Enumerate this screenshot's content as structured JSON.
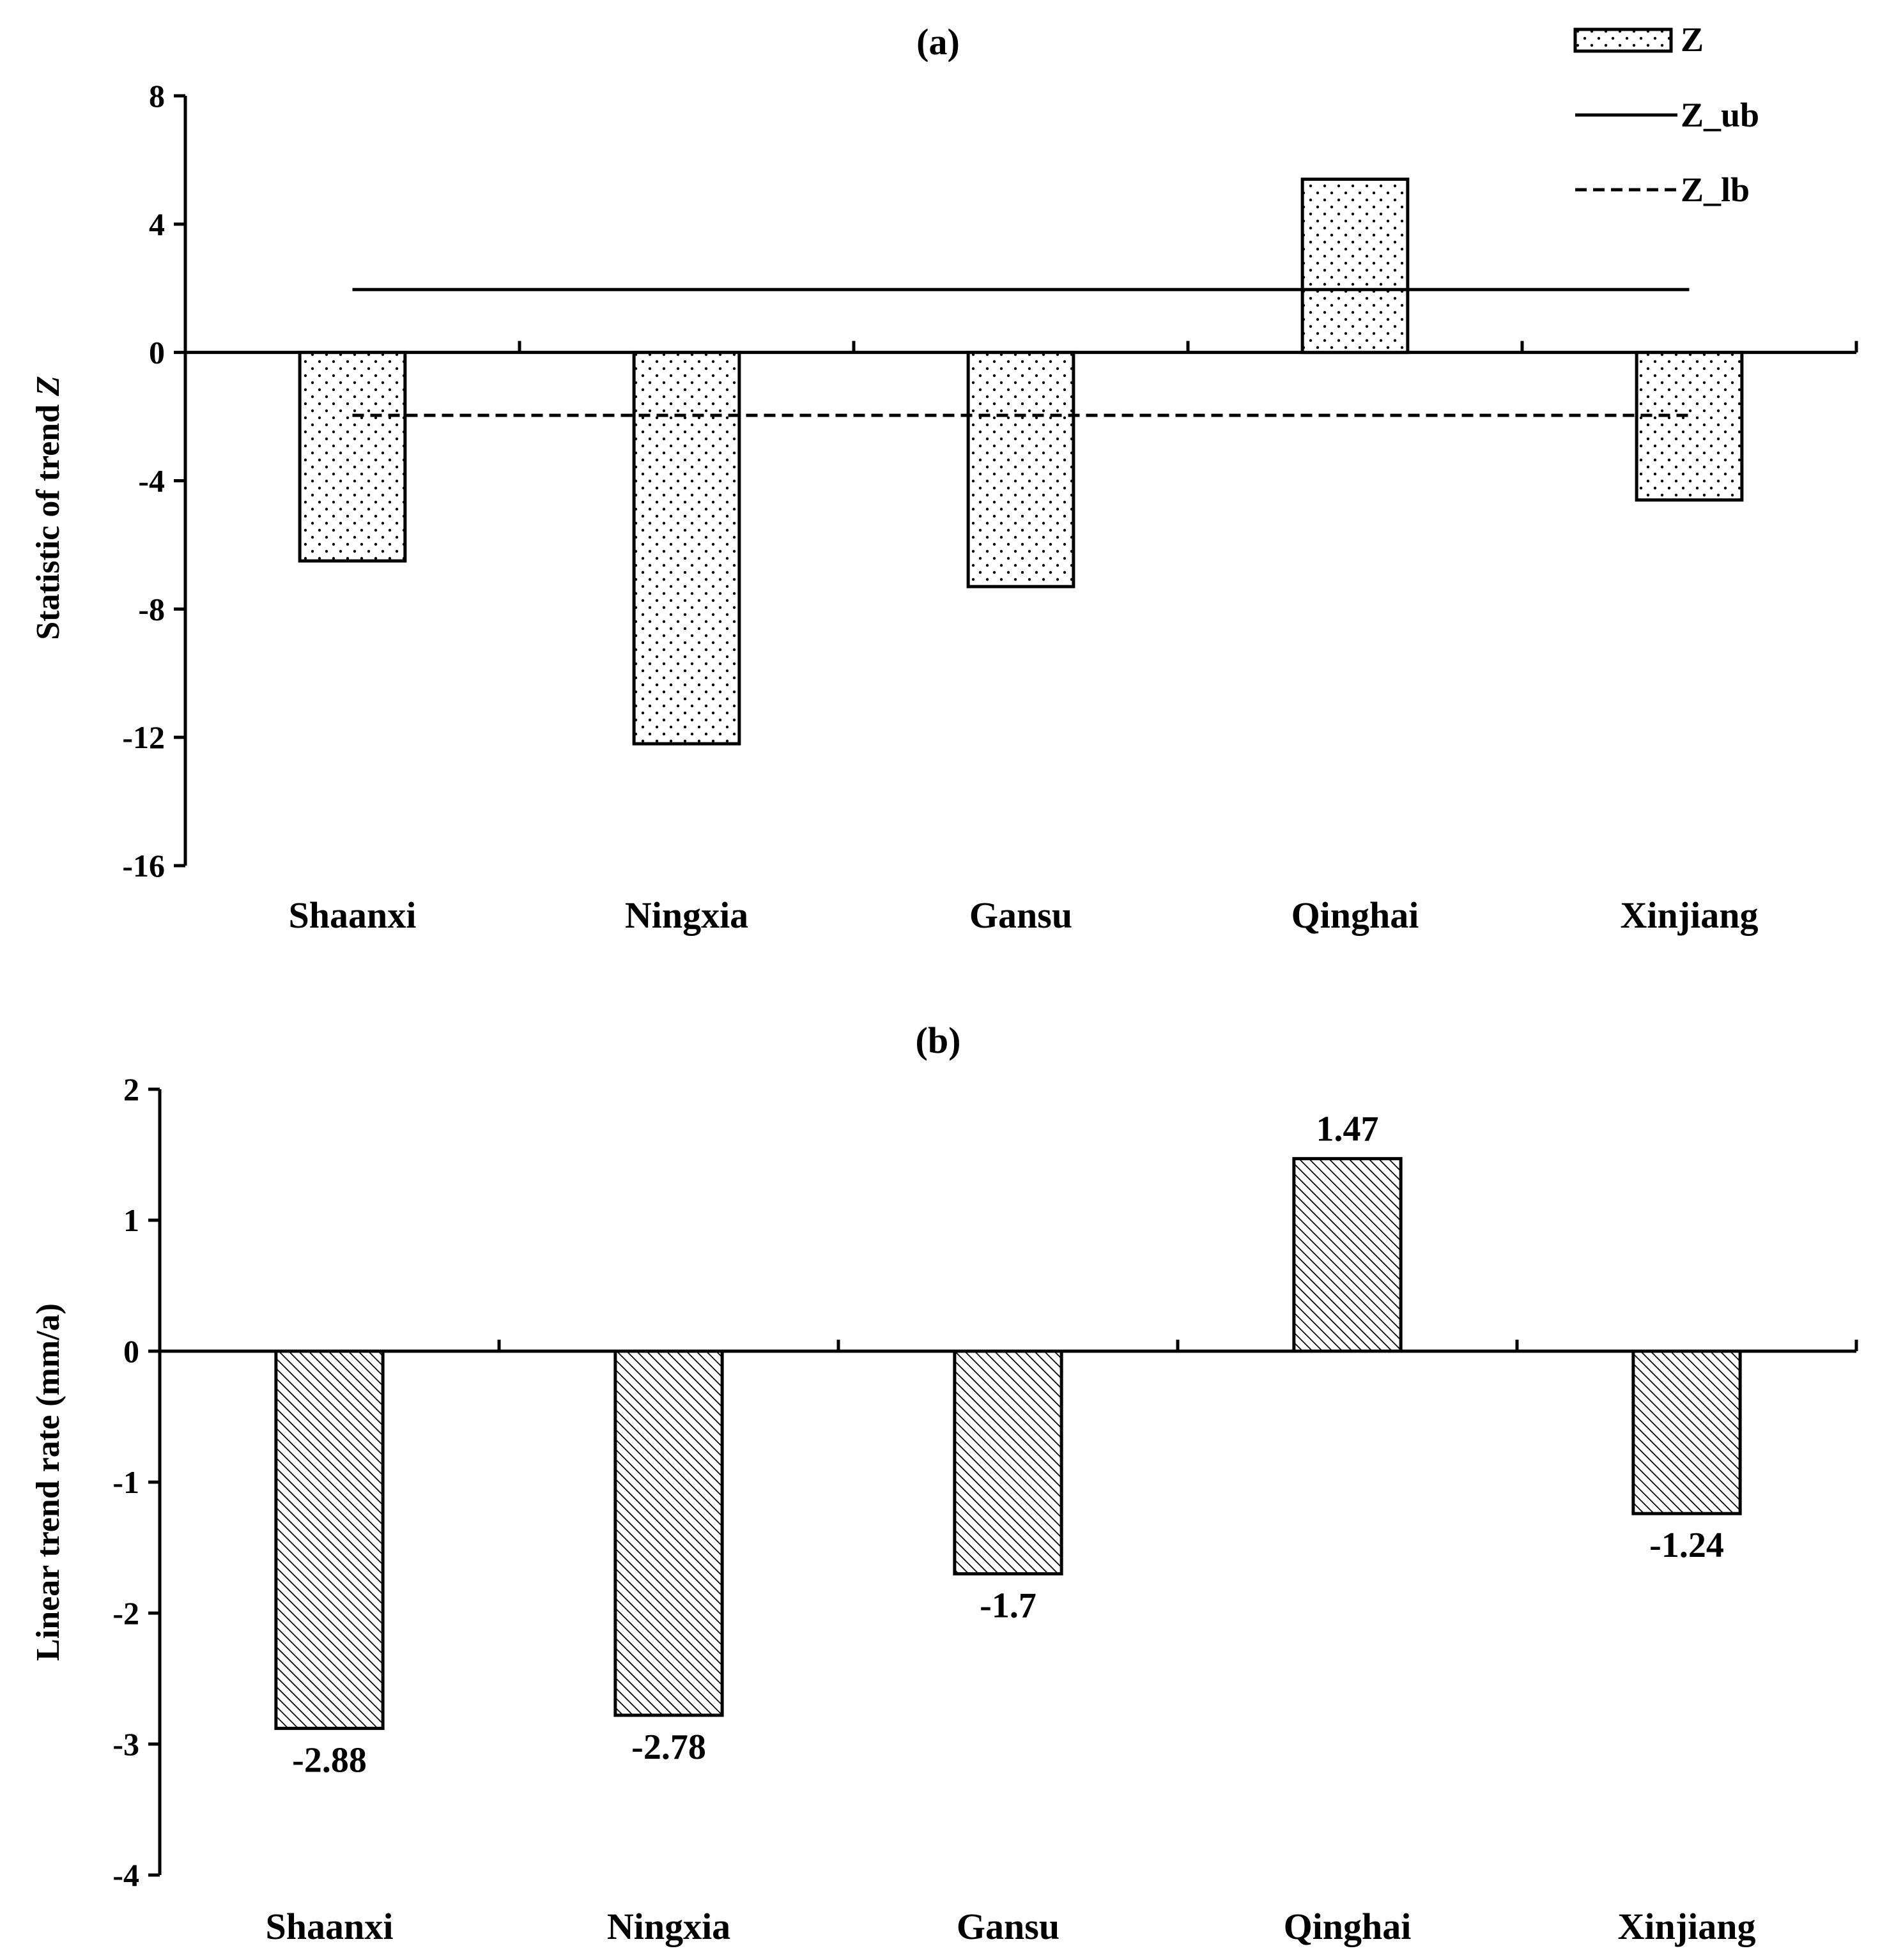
{
  "chart_data": [
    {
      "type": "bar",
      "title": "(a)",
      "xlabel": "",
      "ylabel": "Statistic of trend ",
      "ylabel_italic": "Z",
      "categories": [
        "Shaanxi",
        "Ningxia",
        "Gansu",
        "Qinghai",
        "Xinjiang"
      ],
      "ylim": [
        -16,
        8
      ],
      "yticks": [
        8,
        4,
        0,
        -4,
        -8,
        -12,
        -16
      ],
      "series": [
        {
          "name": "Z",
          "kind": "bar",
          "pattern": "dots",
          "values": [
            -6.5,
            -12.2,
            -7.3,
            5.4,
            -4.6
          ]
        },
        {
          "name": "Z_ub",
          "kind": "line",
          "style": "solid",
          "value": 1.96
        },
        {
          "name": "Z_lb",
          "kind": "line",
          "style": "dashed",
          "value": -1.96
        }
      ],
      "legend": {
        "position": "top-right",
        "entries": [
          "Z",
          "Z_ub",
          "Z_lb"
        ]
      }
    },
    {
      "type": "bar",
      "title": "(b)",
      "xlabel": "",
      "ylabel": "Linear trend rate (mm/a)",
      "categories": [
        "Shaanxi",
        "Ningxia",
        "Gansu",
        "Qinghai",
        "Xinjiang"
      ],
      "ylim": [
        -4,
        2
      ],
      "yticks": [
        2,
        1,
        0,
        -1,
        -2,
        -3,
        -4
      ],
      "series": [
        {
          "name": "Linear trend rate",
          "kind": "bar",
          "pattern": "hatch",
          "values": [
            -2.88,
            -2.78,
            -1.7,
            1.47,
            -1.24
          ]
        }
      ],
      "data_labels": [
        "-2.88",
        "-2.78",
        "-1.7",
        "1.47",
        "-1.24"
      ]
    }
  ]
}
